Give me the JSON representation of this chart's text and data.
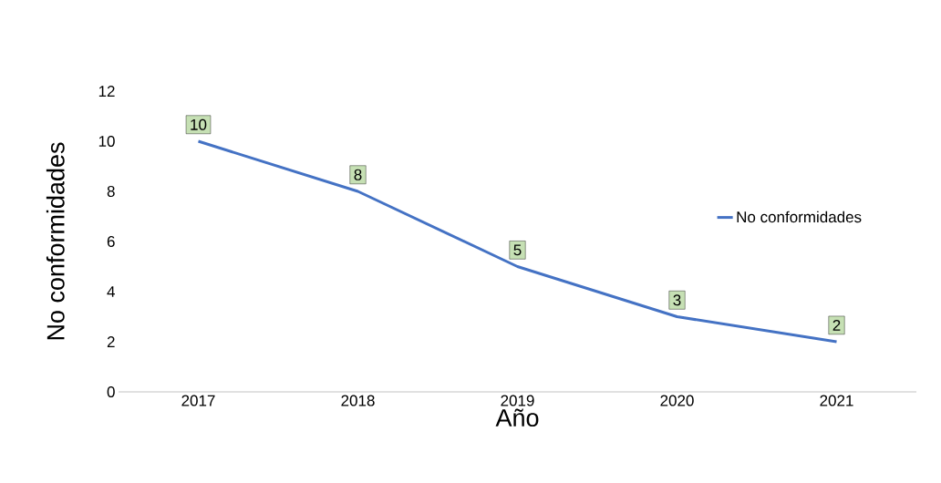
{
  "chart_data": {
    "type": "line",
    "categories": [
      "2017",
      "2018",
      "2019",
      "2020",
      "2021"
    ],
    "series": [
      {
        "name": "No conformidades",
        "color": "#4472c4",
        "values": [
          10,
          8,
          5,
          3,
          2
        ]
      }
    ],
    "xlabel": "Año",
    "ylabel": "No conformidades",
    "ylim": [
      0,
      12
    ],
    "yticks": [
      0,
      2,
      4,
      6,
      8,
      10,
      12
    ],
    "grid": false,
    "legend": "right",
    "marker": "none",
    "line_style": "solid",
    "data_labels": true
  }
}
